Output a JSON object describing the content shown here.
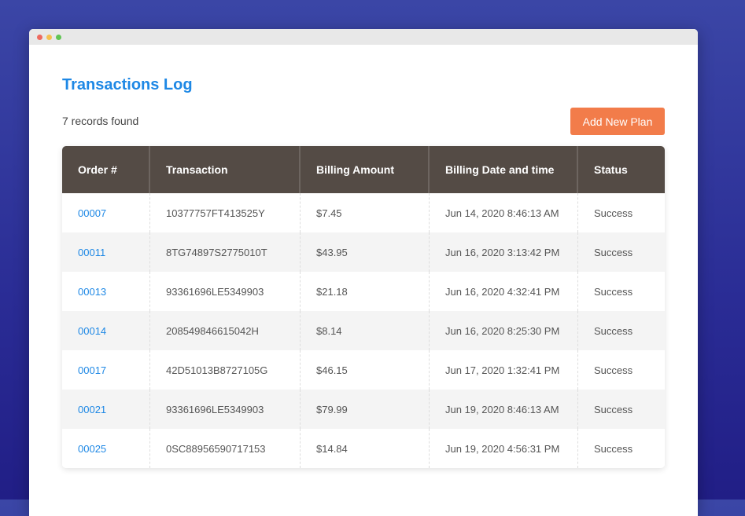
{
  "window": {
    "controls": [
      "#ee6a5f",
      "#f5c04f",
      "#61c554"
    ]
  },
  "page": {
    "title": "Transactions Log",
    "records": "7 records found",
    "add_button": "Add New Plan"
  },
  "table": {
    "headers": [
      "Order #",
      "Transaction",
      "Billing Amount",
      "Billing Date and time",
      "Status"
    ],
    "rows": [
      [
        "00007",
        "10377757FT413525Y",
        "$7.45",
        "Jun 14, 2020 8:46:13 AM",
        "Success"
      ],
      [
        "00011",
        "8TG74897S2775010T",
        "$43.95",
        "Jun 16, 2020 3:13:42 PM",
        "Success"
      ],
      [
        "00013",
        "93361696LE5349903",
        "$21.18",
        "Jun 16, 2020 4:32:41 PM",
        "Success"
      ],
      [
        "00014",
        "208549846615042H",
        "$8.14",
        "Jun 16, 2020 8:25:30 PM",
        "Success"
      ],
      [
        "00017",
        "42D51013B8727105G",
        "$46.15",
        "Jun 17, 2020 1:32:41 PM",
        "Success"
      ],
      [
        "00021",
        "93361696LE5349903",
        "$79.99",
        "Jun 19, 2020 8:46:13 AM",
        "Success"
      ],
      [
        "00025",
        "0SC88956590717153",
        "$14.84",
        "Jun 19, 2020 4:56:31 PM",
        "Success"
      ]
    ]
  },
  "colors": {
    "accent": "#1e88e5",
    "button": "#f27c4a",
    "header": "#544b45"
  }
}
